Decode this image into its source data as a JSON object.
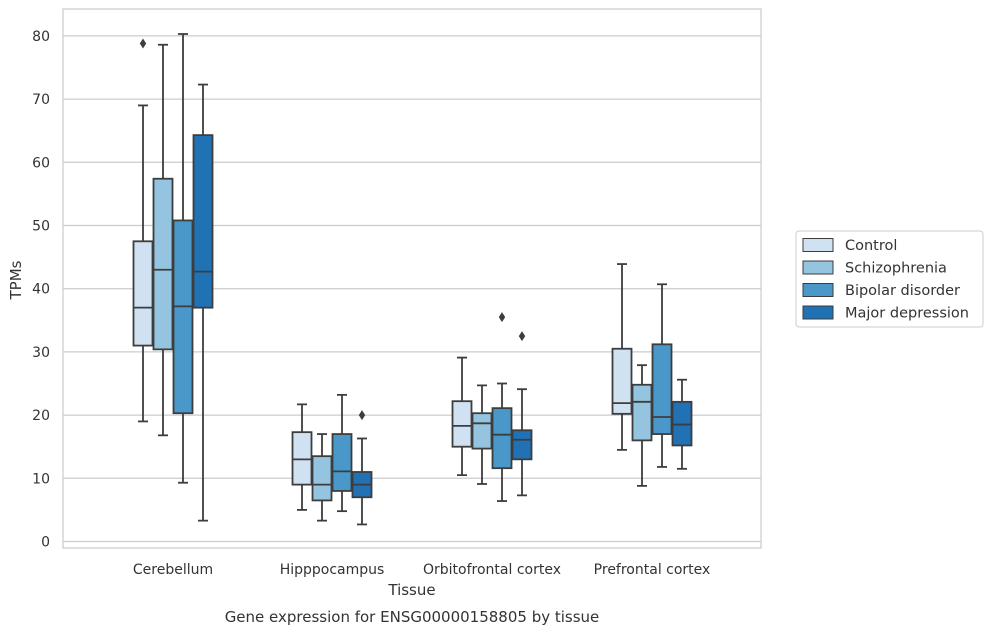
{
  "chart_data": {
    "type": "box",
    "xlabel": "Tissue",
    "ylabel": "TPMs",
    "caption": "Gene expression for ENSG00000158805 by tissue",
    "ylim": [
      -1,
      84
    ],
    "yticks": [
      0,
      10,
      20,
      30,
      40,
      50,
      60,
      70,
      80
    ],
    "grid": "horizontal",
    "legend_position": "right",
    "categories": [
      "Cerebellum",
      "Hipppocampus",
      "Orbitofrontal cortex",
      "Prefrontal cortex"
    ],
    "series": [
      {
        "name": "Control",
        "color": "#d0e1f2",
        "boxes": [
          {
            "whislo": 19.0,
            "q1": 31.0,
            "med": 37.0,
            "q3": 47.5,
            "whishi": 69.0,
            "fliers": [
              78.8
            ]
          },
          {
            "whislo": 5.0,
            "q1": 9.0,
            "med": 13.0,
            "q3": 17.3,
            "whishi": 21.7,
            "fliers": []
          },
          {
            "whislo": 10.5,
            "q1": 15.0,
            "med": 18.3,
            "q3": 22.2,
            "whishi": 29.1,
            "fliers": []
          },
          {
            "whislo": 14.5,
            "q1": 20.2,
            "med": 21.9,
            "q3": 30.5,
            "whishi": 43.9,
            "fliers": []
          }
        ]
      },
      {
        "name": "Schizophrenia",
        "color": "#94c4df",
        "boxes": [
          {
            "whislo": 16.8,
            "q1": 30.4,
            "med": 43.0,
            "q3": 57.4,
            "whishi": 78.6,
            "fliers": []
          },
          {
            "whislo": 3.3,
            "q1": 6.5,
            "med": 9.0,
            "q3": 13.5,
            "whishi": 17.0,
            "fliers": []
          },
          {
            "whislo": 9.1,
            "q1": 14.7,
            "med": 18.7,
            "q3": 20.3,
            "whishi": 24.7,
            "fliers": []
          },
          {
            "whislo": 8.8,
            "q1": 16.0,
            "med": 22.1,
            "q3": 24.8,
            "whishi": 27.9,
            "fliers": []
          }
        ]
      },
      {
        "name": "Bipolar disorder",
        "color": "#4a98c9",
        "boxes": [
          {
            "whislo": 9.3,
            "q1": 20.3,
            "med": 37.2,
            "q3": 50.8,
            "whishi": 80.3,
            "fliers": []
          },
          {
            "whislo": 4.8,
            "q1": 8.0,
            "med": 11.1,
            "q3": 17.0,
            "whishi": 23.2,
            "fliers": []
          },
          {
            "whislo": 6.4,
            "q1": 11.6,
            "med": 16.9,
            "q3": 21.1,
            "whishi": 25.0,
            "fliers": [
              35.5
            ]
          },
          {
            "whislo": 11.8,
            "q1": 17.0,
            "med": 19.7,
            "q3": 31.2,
            "whishi": 40.7,
            "fliers": []
          }
        ]
      },
      {
        "name": "Major depression",
        "color": "#2171b5",
        "boxes": [
          {
            "whislo": 3.3,
            "q1": 37.0,
            "med": 42.7,
            "q3": 64.3,
            "whishi": 72.3,
            "fliers": []
          },
          {
            "whislo": 2.7,
            "q1": 7.0,
            "med": 9.0,
            "q3": 11.0,
            "whishi": 16.3,
            "fliers": [
              20.0
            ]
          },
          {
            "whislo": 7.3,
            "q1": 13.0,
            "med": 16.1,
            "q3": 17.6,
            "whishi": 24.1,
            "fliers": [
              32.5
            ]
          },
          {
            "whislo": 11.5,
            "q1": 15.2,
            "med": 18.5,
            "q3": 22.1,
            "whishi": 25.6,
            "fliers": []
          }
        ]
      }
    ]
  }
}
